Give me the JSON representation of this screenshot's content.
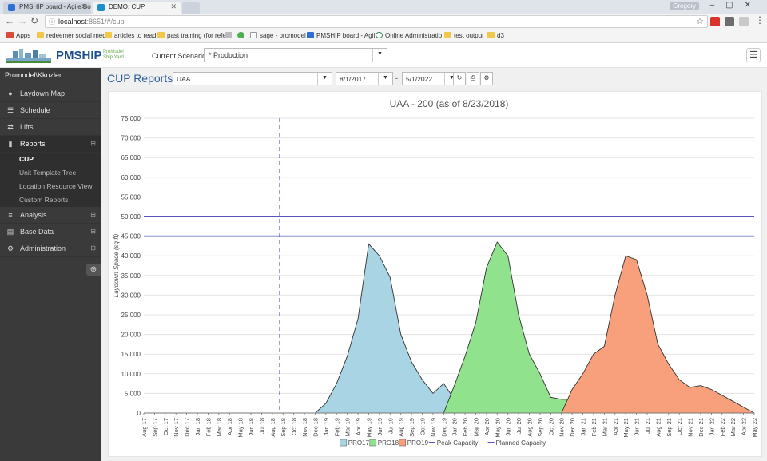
{
  "browser": {
    "tabs": [
      {
        "title": "PMSHIP board - Agile Bo",
        "color": "#2d6fd6"
      },
      {
        "title": "DEMO: CUP",
        "color": "#1a8fc9"
      }
    ],
    "user": "Gregory",
    "url_host": "localhost",
    "url_rest": ":8651/#/cup",
    "bookmarks": [
      {
        "label": "Apps"
      },
      {
        "label": "redeemer social med"
      },
      {
        "label": "articles to read"
      },
      {
        "label": "past training (for refe"
      },
      {
        "label": "sage - promodel"
      },
      {
        "label": "PMSHIP board - Agil"
      },
      {
        "label": "Online Administratio"
      },
      {
        "label": "test output"
      },
      {
        "label": "d3"
      }
    ]
  },
  "header": {
    "logo_name": "PMSHIP",
    "logo_sub1": "ProModel",
    "logo_sub2": "Ship Yard",
    "scenario_label": "Current Scenario:",
    "scenario_value": "* Production"
  },
  "sidebar": {
    "user": "Promodel\\Kkozler",
    "items": [
      {
        "label": "Laydown Map",
        "icon": "map-pin-icon"
      },
      {
        "label": "Schedule",
        "icon": "schedule-icon"
      },
      {
        "label": "Lifts",
        "icon": "lifts-icon"
      },
      {
        "label": "Reports",
        "icon": "bar-chart-icon"
      }
    ],
    "reports_sub": [
      "CUP",
      "Unit Template Tree",
      "Location Resource View",
      "Custom Reports"
    ],
    "items_after": [
      {
        "label": "Analysis",
        "icon": "sliders-icon"
      },
      {
        "label": "Base Data",
        "icon": "database-icon"
      },
      {
        "label": "Administration",
        "icon": "gear-icon"
      }
    ]
  },
  "toolbar": {
    "title": "CUP Reports",
    "report_select": "UAA",
    "start_date": "8/1/2017",
    "date_sep": "-",
    "end_date": "5/1/2022"
  },
  "chart_data": {
    "type": "area",
    "title": "UAA - 200 (as of 8/23/2018)",
    "ylabel": "Laydown Space (sq ft)",
    "ylim": [
      0,
      75000
    ],
    "yticks": [
      0,
      5000,
      10000,
      15000,
      20000,
      25000,
      30000,
      35000,
      40000,
      45000,
      50000,
      55000,
      60000,
      65000,
      70000,
      75000
    ],
    "ytick_labels": [
      "0",
      "5,000",
      "10,000",
      "15,000",
      "20,000",
      "25,000",
      "30,000",
      "35,000",
      "40,000",
      "45,000",
      "50,000",
      "55,000",
      "60,000",
      "65,000",
      "70,000",
      "75,000"
    ],
    "x": [
      "Aug 17",
      "Sep 17",
      "Oct 17",
      "Nov 17",
      "Dec 17",
      "Jan 18",
      "Feb 18",
      "Mar 18",
      "Apr 18",
      "May 18",
      "Jun 18",
      "Jul 18",
      "Aug 18",
      "Sep 18",
      "Oct 18",
      "Nov 18",
      "Dec 18",
      "Jan 19",
      "Feb 19",
      "Mar 19",
      "Apr 19",
      "May 19",
      "Jun 19",
      "Jul 19",
      "Aug 19",
      "Sep 19",
      "Oct 19",
      "Nov 19",
      "Dec 19",
      "Jan 20",
      "Feb 20",
      "Mar 20",
      "Apr 20",
      "May 20",
      "Jun 20",
      "Jul 20",
      "Aug 20",
      "Sep 20",
      "Oct 20",
      "Nov 20",
      "Dec 20",
      "Jan 21",
      "Feb 21",
      "Mar 21",
      "Apr 21",
      "May 21",
      "Jun 21",
      "Jul 21",
      "Aug 21",
      "Sep 21",
      "Oct 21",
      "Nov 21",
      "Dec 21",
      "Jan 22",
      "Feb 22",
      "Mar 22",
      "Apr 22",
      "May 22"
    ],
    "series": [
      {
        "name": "PRO17",
        "color": "#a9d4e3",
        "values": [
          0,
          0,
          0,
          0,
          0,
          0,
          0,
          0,
          0,
          0,
          0,
          0,
          0,
          0,
          0,
          0,
          0,
          2500,
          7500,
          14500,
          24000,
          43000,
          40000,
          34500,
          20000,
          13000,
          8500,
          5000,
          7500,
          3500,
          2500,
          1000,
          0,
          0,
          0,
          0,
          0,
          0,
          0,
          0,
          0,
          0,
          0,
          0,
          0,
          0,
          0,
          0,
          0,
          0,
          0,
          0,
          0,
          0,
          0,
          0,
          0,
          0
        ]
      },
      {
        "name": "PRO18",
        "color": "#90e28c",
        "values": [
          0,
          0,
          0,
          0,
          0,
          0,
          0,
          0,
          0,
          0,
          0,
          0,
          0,
          0,
          0,
          0,
          0,
          0,
          0,
          0,
          0,
          0,
          0,
          0,
          0,
          0,
          0,
          0,
          0,
          7000,
          14500,
          23000,
          37000,
          43500,
          40000,
          25000,
          15000,
          10000,
          4000,
          3500,
          3500,
          2000,
          500,
          0,
          0,
          0,
          0,
          0,
          0,
          0,
          0,
          0,
          0,
          0,
          0,
          0,
          0,
          0
        ]
      },
      {
        "name": "PRO19",
        "color": "#f7a07b",
        "values": [
          0,
          0,
          0,
          0,
          0,
          0,
          0,
          0,
          0,
          0,
          0,
          0,
          0,
          0,
          0,
          0,
          0,
          0,
          0,
          0,
          0,
          0,
          0,
          0,
          0,
          0,
          0,
          0,
          0,
          0,
          0,
          0,
          0,
          0,
          0,
          0,
          0,
          0,
          0,
          0,
          6000,
          10000,
          15000,
          17000,
          30000,
          40000,
          39000,
          30000,
          17500,
          12500,
          8500,
          6500,
          7000,
          6000,
          4500,
          3000,
          1500,
          0
        ]
      }
    ],
    "lines": [
      {
        "name": "Peak Capacity",
        "value": 50000,
        "color": "#1f1fa0"
      },
      {
        "name": "Planned Capacity",
        "value": 45000,
        "color": "#1f1fa0"
      }
    ],
    "today_marker": "Aug 18",
    "legend_position": "bottom",
    "grid": true
  }
}
